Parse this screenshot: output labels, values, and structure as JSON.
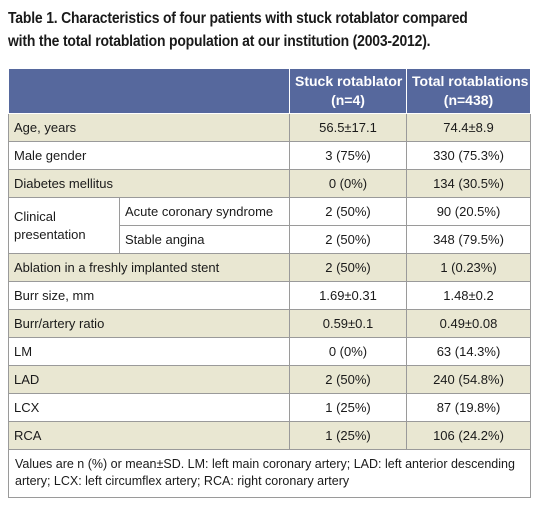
{
  "title": {
    "line1": "Table 1. Characteristics of four patients with stuck rotablator compared",
    "line2": "with the total rotablation population at our institution (2003-2012)."
  },
  "header": {
    "col1": "Stuck rotablator",
    "col1_n": "(n=4)",
    "col2": "Total rotablations",
    "col2_n": "(n=438)"
  },
  "rows": {
    "age": {
      "label": "Age, years",
      "stuck": "56.5±17.1",
      "total": "74.4±8.9"
    },
    "male": {
      "label": "Male gender",
      "stuck": "3 (75%)",
      "total": "330 (75.3%)"
    },
    "diabetes": {
      "label": "Diabetes mellitus",
      "stuck": "0 (0%)",
      "total": "134 (30.5%)"
    },
    "clinical": {
      "label": "Clinical presentation",
      "acs": {
        "label": "Acute coronary syndrome",
        "stuck": "2 (50%)",
        "total": "90 (20.5%)"
      },
      "stable": {
        "label": "Stable angina",
        "stuck": "2 (50%)",
        "total": "348 (79.5%)"
      }
    },
    "ablation": {
      "label": "Ablation in a freshly implanted stent",
      "stuck": "2 (50%)",
      "total": "1 (0.23%)"
    },
    "burr_size": {
      "label": "Burr size, mm",
      "stuck": "1.69±0.31",
      "total": "1.48±0.2"
    },
    "burr_ratio": {
      "label": "Burr/artery ratio",
      "stuck": "0.59±0.1",
      "total": "0.49±0.08"
    },
    "lm": {
      "label": "LM",
      "stuck": "0 (0%)",
      "total": "63 (14.3%)"
    },
    "lad": {
      "label": "LAD",
      "stuck": "2 (50%)",
      "total": "240 (54.8%)"
    },
    "lcx": {
      "label": "LCX",
      "stuck": "1 (25%)",
      "total": "87 (19.8%)"
    },
    "rca": {
      "label": "RCA",
      "stuck": "1 (25%)",
      "total": "106 (24.2%)"
    }
  },
  "footnote": "Values are n (%) or mean±SD. LM: left main coronary artery; LAD: left anterior descending artery; LCX: left circumflex artery; RCA: right coronary artery"
}
